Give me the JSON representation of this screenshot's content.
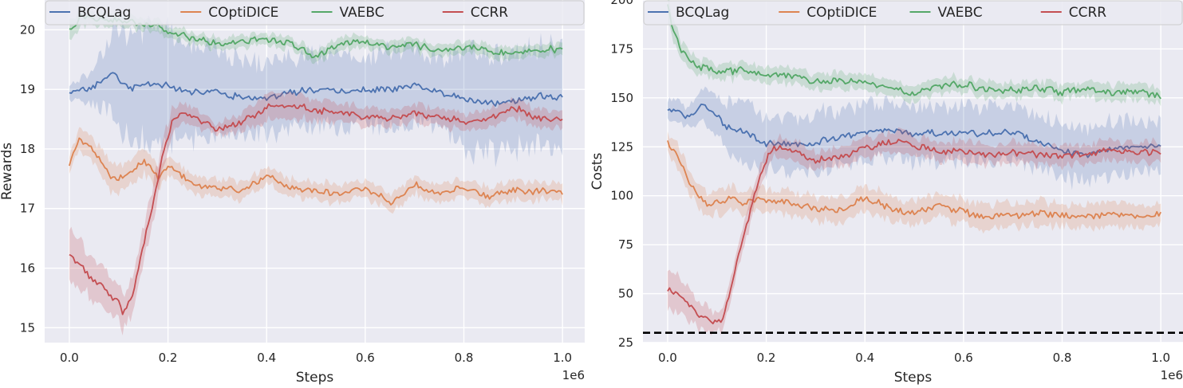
{
  "colors": {
    "BCQLag": "#4c72b0",
    "COptiDICE": "#dd8452",
    "VAEBC": "#55a868",
    "CCRR": "#c44e52",
    "plot_bg": "#eaeaf2",
    "grid": "#ffffff",
    "threshold": "#000000"
  },
  "chart_data": [
    {
      "type": "line",
      "xlabel": "Steps",
      "ylabel": "Rewards",
      "x_offset_label": "1e6",
      "xlim": [
        -0.05,
        1.045
      ],
      "ylim": [
        14.75,
        20.5
      ],
      "xticks": [
        0.0,
        0.2,
        0.4,
        0.6,
        0.8,
        1.0
      ],
      "xtick_labels": [
        "0.0",
        "0.2",
        "0.4",
        "0.6",
        "0.8",
        "1.0"
      ],
      "yticks": [
        15,
        16,
        17,
        18,
        19,
        20
      ],
      "ytick_labels": [
        "15",
        "16",
        "17",
        "18",
        "19",
        "20"
      ],
      "grid": true,
      "legend_position": "top",
      "series": [
        {
          "name": "BCQLag",
          "x": [
            0.0,
            0.05,
            0.08,
            0.1,
            0.12,
            0.15,
            0.2,
            0.25,
            0.3,
            0.35,
            0.4,
            0.45,
            0.5,
            0.55,
            0.6,
            0.65,
            0.7,
            0.75,
            0.8,
            0.85,
            0.9,
            0.95,
            1.0
          ],
          "y": [
            18.9,
            19.05,
            19.25,
            19.2,
            19.0,
            19.1,
            19.05,
            18.95,
            18.95,
            18.85,
            18.85,
            18.95,
            19.0,
            18.95,
            19.0,
            19.0,
            19.05,
            18.95,
            18.85,
            18.75,
            18.8,
            18.9,
            18.85
          ],
          "band_width": [
            0.1,
            0.3,
            0.6,
            0.8,
            0.8,
            0.9,
            0.9,
            0.8,
            0.7,
            0.6,
            0.6,
            0.6,
            0.6,
            0.6,
            0.6,
            0.6,
            0.6,
            0.6,
            0.9,
            0.8,
            0.8,
            0.8,
            0.8
          ]
        },
        {
          "name": "COptiDICE",
          "x": [
            0.0,
            0.02,
            0.05,
            0.08,
            0.1,
            0.12,
            0.15,
            0.18,
            0.2,
            0.25,
            0.3,
            0.35,
            0.4,
            0.45,
            0.5,
            0.55,
            0.6,
            0.65,
            0.7,
            0.75,
            0.8,
            0.85,
            0.9,
            0.95,
            1.0
          ],
          "y": [
            17.75,
            18.15,
            18.0,
            17.55,
            17.5,
            17.55,
            17.8,
            17.5,
            17.7,
            17.4,
            17.35,
            17.3,
            17.55,
            17.35,
            17.3,
            17.25,
            17.35,
            17.1,
            17.4,
            17.25,
            17.35,
            17.2,
            17.3,
            17.3,
            17.25
          ],
          "band_width": [
            0.15,
            0.15,
            0.2,
            0.25,
            0.25,
            0.2,
            0.2,
            0.2,
            0.15,
            0.15,
            0.15,
            0.15,
            0.15,
            0.15,
            0.15,
            0.15,
            0.15,
            0.15,
            0.15,
            0.15,
            0.15,
            0.15,
            0.15,
            0.15,
            0.15
          ]
        },
        {
          "name": "VAEBC",
          "x": [
            0.0,
            0.02,
            0.05,
            0.1,
            0.15,
            0.2,
            0.25,
            0.3,
            0.35,
            0.4,
            0.45,
            0.5,
            0.55,
            0.6,
            0.65,
            0.7,
            0.75,
            0.8,
            0.85,
            0.9,
            0.95,
            1.0
          ],
          "y": [
            19.95,
            20.2,
            20.2,
            20.15,
            20.1,
            20.0,
            19.85,
            19.75,
            19.8,
            19.85,
            19.75,
            19.55,
            19.75,
            19.8,
            19.7,
            19.75,
            19.65,
            19.7,
            19.65,
            19.6,
            19.7,
            19.65
          ],
          "band_width": [
            0.15,
            0.15,
            0.12,
            0.1,
            0.1,
            0.1,
            0.1,
            0.1,
            0.1,
            0.1,
            0.1,
            0.1,
            0.1,
            0.1,
            0.1,
            0.1,
            0.1,
            0.1,
            0.1,
            0.1,
            0.1,
            0.1
          ]
        },
        {
          "name": "CCRR",
          "x": [
            0.0,
            0.02,
            0.04,
            0.06,
            0.08,
            0.1,
            0.11,
            0.13,
            0.15,
            0.17,
            0.19,
            0.21,
            0.23,
            0.25,
            0.3,
            0.35,
            0.4,
            0.45,
            0.5,
            0.55,
            0.6,
            0.65,
            0.7,
            0.75,
            0.8,
            0.85,
            0.9,
            0.95,
            1.0
          ],
          "y": [
            16.2,
            16.1,
            15.85,
            15.75,
            15.55,
            15.4,
            15.25,
            15.6,
            16.4,
            17.1,
            17.9,
            18.5,
            18.6,
            18.55,
            18.3,
            18.45,
            18.7,
            18.75,
            18.65,
            18.6,
            18.55,
            18.5,
            18.6,
            18.55,
            18.45,
            18.5,
            18.7,
            18.5,
            18.5
          ],
          "band_width": [
            0.4,
            0.4,
            0.35,
            0.3,
            0.3,
            0.3,
            0.3,
            0.3,
            0.3,
            0.3,
            0.3,
            0.2,
            0.15,
            0.15,
            0.1,
            0.15,
            0.2,
            0.2,
            0.2,
            0.15,
            0.15,
            0.15,
            0.15,
            0.15,
            0.15,
            0.15,
            0.15,
            0.15,
            0.15
          ]
        }
      ]
    },
    {
      "type": "line",
      "xlabel": "Steps",
      "ylabel": "Costs",
      "x_offset_label": "1e6",
      "xlim": [
        -0.05,
        1.045
      ],
      "ylim": [
        25,
        200
      ],
      "xticks": [
        0.0,
        0.2,
        0.4,
        0.6,
        0.8,
        1.0
      ],
      "xtick_labels": [
        "0.0",
        "0.2",
        "0.4",
        "0.6",
        "0.8",
        "1.0"
      ],
      "yticks": [
        25,
        50,
        75,
        100,
        125,
        150,
        175,
        200
      ],
      "ytick_labels": [
        "25",
        "50",
        "75",
        "100",
        "125",
        "150",
        "175",
        "200"
      ],
      "grid": true,
      "legend_position": "top",
      "threshold": 30,
      "series": [
        {
          "name": "BCQLag",
          "x": [
            0.0,
            0.03,
            0.05,
            0.07,
            0.1,
            0.12,
            0.15,
            0.2,
            0.25,
            0.3,
            0.35,
            0.4,
            0.45,
            0.5,
            0.55,
            0.6,
            0.65,
            0.7,
            0.75,
            0.8,
            0.85,
            0.9,
            0.95,
            1.0
          ],
          "y": [
            144,
            142,
            140,
            146,
            141,
            135,
            133,
            127,
            126,
            127,
            130,
            132,
            133,
            132,
            132,
            132,
            132,
            133,
            128,
            123,
            121,
            124,
            125,
            126
          ],
          "band_width": [
            5,
            5,
            6,
            8,
            10,
            12,
            14,
            14,
            14,
            14,
            14,
            14,
            14,
            14,
            14,
            14,
            14,
            14,
            14,
            14,
            14,
            14,
            14,
            12
          ]
        },
        {
          "name": "COptiDICE",
          "x": [
            0.0,
            0.02,
            0.04,
            0.06,
            0.08,
            0.1,
            0.13,
            0.15,
            0.2,
            0.25,
            0.3,
            0.35,
            0.4,
            0.45,
            0.5,
            0.55,
            0.6,
            0.65,
            0.7,
            0.75,
            0.8,
            0.85,
            0.9,
            0.95,
            1.0
          ],
          "y": [
            128,
            120,
            110,
            100,
            96,
            96,
            99,
            97,
            98,
            96,
            94,
            92,
            99,
            94,
            91,
            95,
            92,
            89,
            90,
            91,
            90,
            89,
            91,
            90,
            90
          ],
          "band_width": [
            5,
            6,
            6,
            6,
            6,
            6,
            6,
            6,
            6,
            6,
            6,
            6,
            6,
            6,
            6,
            6,
            6,
            6,
            6,
            6,
            6,
            6,
            6,
            6,
            6
          ]
        },
        {
          "name": "VAEBC",
          "x": [
            0.0,
            0.01,
            0.03,
            0.06,
            0.1,
            0.15,
            0.2,
            0.25,
            0.3,
            0.35,
            0.4,
            0.45,
            0.5,
            0.55,
            0.6,
            0.65,
            0.7,
            0.75,
            0.8,
            0.85,
            0.9,
            0.95,
            1.0
          ],
          "y": [
            198,
            186,
            173,
            166,
            163,
            164,
            162,
            161,
            158,
            159,
            158,
            155,
            152,
            156,
            157,
            154,
            154,
            155,
            153,
            155,
            152,
            154,
            150
          ],
          "band_width": [
            8,
            6,
            5,
            4,
            4,
            4,
            4,
            4,
            4,
            4,
            4,
            4,
            4,
            4,
            4,
            4,
            4,
            4,
            4,
            4,
            4,
            4,
            4
          ]
        },
        {
          "name": "CCRR",
          "x": [
            0.0,
            0.02,
            0.04,
            0.06,
            0.08,
            0.1,
            0.11,
            0.13,
            0.15,
            0.17,
            0.19,
            0.21,
            0.23,
            0.25,
            0.3,
            0.35,
            0.4,
            0.45,
            0.5,
            0.55,
            0.6,
            0.65,
            0.7,
            0.75,
            0.8,
            0.85,
            0.9,
            0.95,
            1.0
          ],
          "y": [
            53,
            50,
            46,
            40,
            37,
            35,
            35,
            55,
            75,
            95,
            112,
            124,
            125,
            123,
            118,
            120,
            124,
            128,
            126,
            123,
            122,
            120,
            122,
            121,
            120,
            121,
            123,
            122,
            123
          ],
          "band_width": [
            9,
            9,
            8,
            7,
            6,
            5,
            5,
            6,
            6,
            6,
            6,
            5,
            5,
            5,
            5,
            5,
            5,
            5,
            5,
            5,
            5,
            5,
            5,
            5,
            5,
            5,
            5,
            5,
            5
          ]
        }
      ]
    }
  ]
}
